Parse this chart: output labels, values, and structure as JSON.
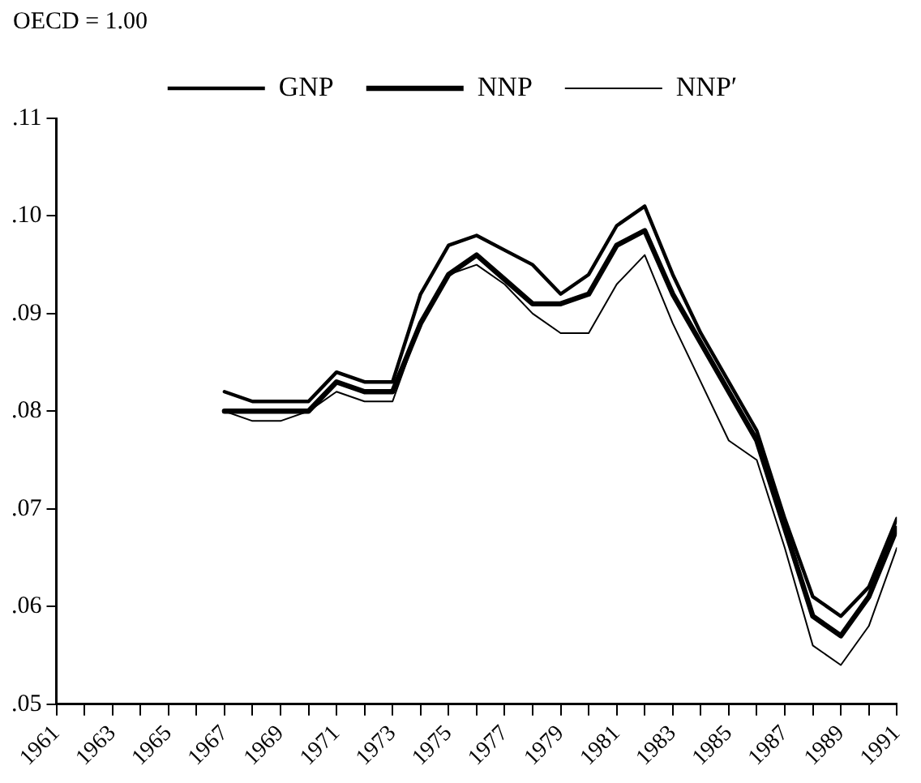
{
  "chart_data": {
    "type": "line",
    "ylabel": "OECD = 1.00",
    "x": [
      1967,
      1968,
      1969,
      1970,
      1971,
      1972,
      1973,
      1974,
      1975,
      1976,
      1977,
      1978,
      1979,
      1980,
      1981,
      1982,
      1983,
      1984,
      1985,
      1986,
      1987,
      1988,
      1989,
      1990,
      1991
    ],
    "series": [
      {
        "name": "GNP",
        "color": "#000000",
        "values": [
          0.082,
          0.081,
          0.081,
          0.081,
          0.084,
          0.083,
          0.083,
          0.092,
          0.097,
          0.098,
          0.0965,
          0.095,
          0.092,
          0.094,
          0.099,
          0.101,
          0.094,
          0.088,
          0.083,
          0.078,
          0.069,
          0.061,
          0.059,
          0.062,
          0.069
        ]
      },
      {
        "name": "NNP",
        "color": "#000000",
        "values": [
          0.08,
          0.08,
          0.08,
          0.08,
          0.083,
          0.082,
          0.082,
          0.089,
          0.094,
          0.096,
          0.0935,
          0.091,
          0.091,
          0.092,
          0.097,
          0.0985,
          0.092,
          0.087,
          0.082,
          0.077,
          0.068,
          0.059,
          0.057,
          0.061,
          0.068
        ]
      },
      {
        "name": "NNP′",
        "color": "#000000",
        "values": [
          0.08,
          0.079,
          0.079,
          0.08,
          0.082,
          0.081,
          0.081,
          0.089,
          0.094,
          0.095,
          0.093,
          0.09,
          0.088,
          0.088,
          0.093,
          0.096,
          0.089,
          0.083,
          0.077,
          0.075,
          0.066,
          0.056,
          0.054,
          0.058,
          0.066
        ]
      }
    ],
    "xlim": [
      1961,
      1991
    ],
    "xticks": [
      1961,
      {
        "value": 1962,
        "label": null
      },
      1963,
      {
        "value": 1964,
        "label": null
      },
      1965,
      {
        "value": 1966,
        "label": null
      },
      1967,
      {
        "value": 1968,
        "label": null
      },
      1969,
      {
        "value": 1970,
        "label": null
      },
      1971,
      {
        "value": 1972,
        "label": null
      },
      1973,
      {
        "value": 1974,
        "label": null
      },
      1975,
      {
        "value": 1976,
        "label": null
      },
      1977,
      {
        "value": 1978,
        "label": null
      },
      1979,
      {
        "value": 1980,
        "label": null
      },
      1981,
      {
        "value": 1982,
        "label": null
      },
      1983,
      {
        "value": 1984,
        "label": null
      },
      1985,
      {
        "value": 1986,
        "label": null
      },
      1987,
      {
        "value": 1988,
        "label": null
      },
      1989,
      {
        "value": 1990,
        "label": null
      },
      1991
    ],
    "ylim": [
      0.05,
      0.11
    ],
    "yticks": [
      {
        "value": 0.05,
        "label": ".05"
      },
      {
        "value": 0.06,
        "label": ".06"
      },
      {
        "value": 0.07,
        "label": ".07"
      },
      {
        "value": 0.08,
        "label": ".08"
      },
      {
        "value": 0.09,
        "label": ".09"
      },
      {
        "value": 0.1,
        "label": ".10"
      },
      {
        "value": 0.11,
        "label": ".11"
      }
    ],
    "grid": false,
    "legend": "top",
    "marker": "none",
    "line_style": "solid"
  }
}
